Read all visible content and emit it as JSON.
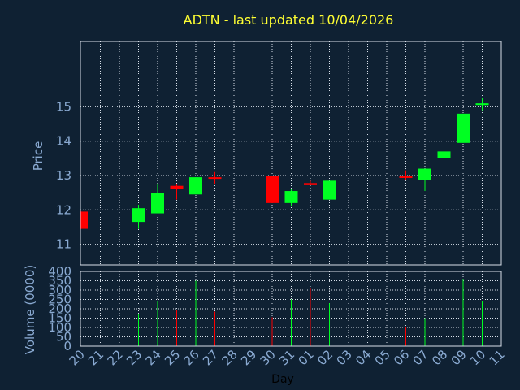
{
  "chart_data": {
    "type": "candlestick",
    "title": "ADTN - last updated 10/04/2026",
    "xlabel": "Day",
    "price_panel": {
      "ylabel": "Price",
      "ylim": [
        10.4,
        16.9
      ],
      "yticks": [
        11,
        12,
        13,
        14,
        15
      ]
    },
    "volume_panel": {
      "ylabel": "Volume (0000)",
      "ylim": [
        0,
        400
      ],
      "yticks": [
        0,
        50,
        100,
        150,
        200,
        250,
        300,
        350,
        400
      ]
    },
    "x_tick_labels": [
      "20",
      "21",
      "22",
      "23",
      "24",
      "25",
      "26",
      "27",
      "28",
      "29",
      "30",
      "31",
      "01",
      "02",
      "03",
      "04",
      "05",
      "06",
      "07",
      "08",
      "09",
      "10",
      "11"
    ],
    "up_color": "#00ff22",
    "down_color": "#ff0000",
    "candles": [
      {
        "day": "20",
        "open": 11.95,
        "high": 11.95,
        "low": 11.45,
        "close": 11.45,
        "volume": 0
      },
      {
        "day": "23",
        "open": 11.65,
        "high": 12.15,
        "low": 11.45,
        "close": 12.05,
        "volume": 170
      },
      {
        "day": "24",
        "open": 11.9,
        "high": 12.75,
        "low": 11.9,
        "close": 12.5,
        "volume": 240
      },
      {
        "day": "25",
        "open": 12.7,
        "high": 12.75,
        "low": 12.3,
        "close": 12.6,
        "volume": 195
      },
      {
        "day": "26",
        "open": 12.45,
        "high": 12.95,
        "low": 12.45,
        "close": 12.95,
        "volume": 350
      },
      {
        "day": "27",
        "open": 12.95,
        "high": 13.1,
        "low": 12.75,
        "close": 12.92,
        "volume": 185
      },
      {
        "day": "30",
        "open": 13.0,
        "high": 13.0,
        "low": 12.2,
        "close": 12.2,
        "volume": 155
      },
      {
        "day": "31",
        "open": 12.2,
        "high": 12.6,
        "low": 12.1,
        "close": 12.55,
        "volume": 250
      },
      {
        "day": "01",
        "open": 12.78,
        "high": 12.85,
        "low": 12.72,
        "close": 12.72,
        "volume": 310
      },
      {
        "day": "02",
        "open": 12.3,
        "high": 12.85,
        "low": 12.3,
        "close": 12.85,
        "volume": 230
      },
      {
        "day": "06",
        "open": 12.98,
        "high": 13.15,
        "low": 12.88,
        "close": 12.93,
        "volume": 100
      },
      {
        "day": "07",
        "open": 12.88,
        "high": 13.2,
        "low": 12.55,
        "close": 13.2,
        "volume": 150
      },
      {
        "day": "08",
        "open": 13.5,
        "high": 13.85,
        "low": 13.25,
        "close": 13.7,
        "volume": 260
      },
      {
        "day": "09",
        "open": 13.95,
        "high": 14.8,
        "low": 13.95,
        "close": 14.8,
        "volume": 360
      },
      {
        "day": "10",
        "open": 15.05,
        "high": 15.25,
        "low": 14.9,
        "close": 15.1,
        "volume": 240
      }
    ]
  }
}
